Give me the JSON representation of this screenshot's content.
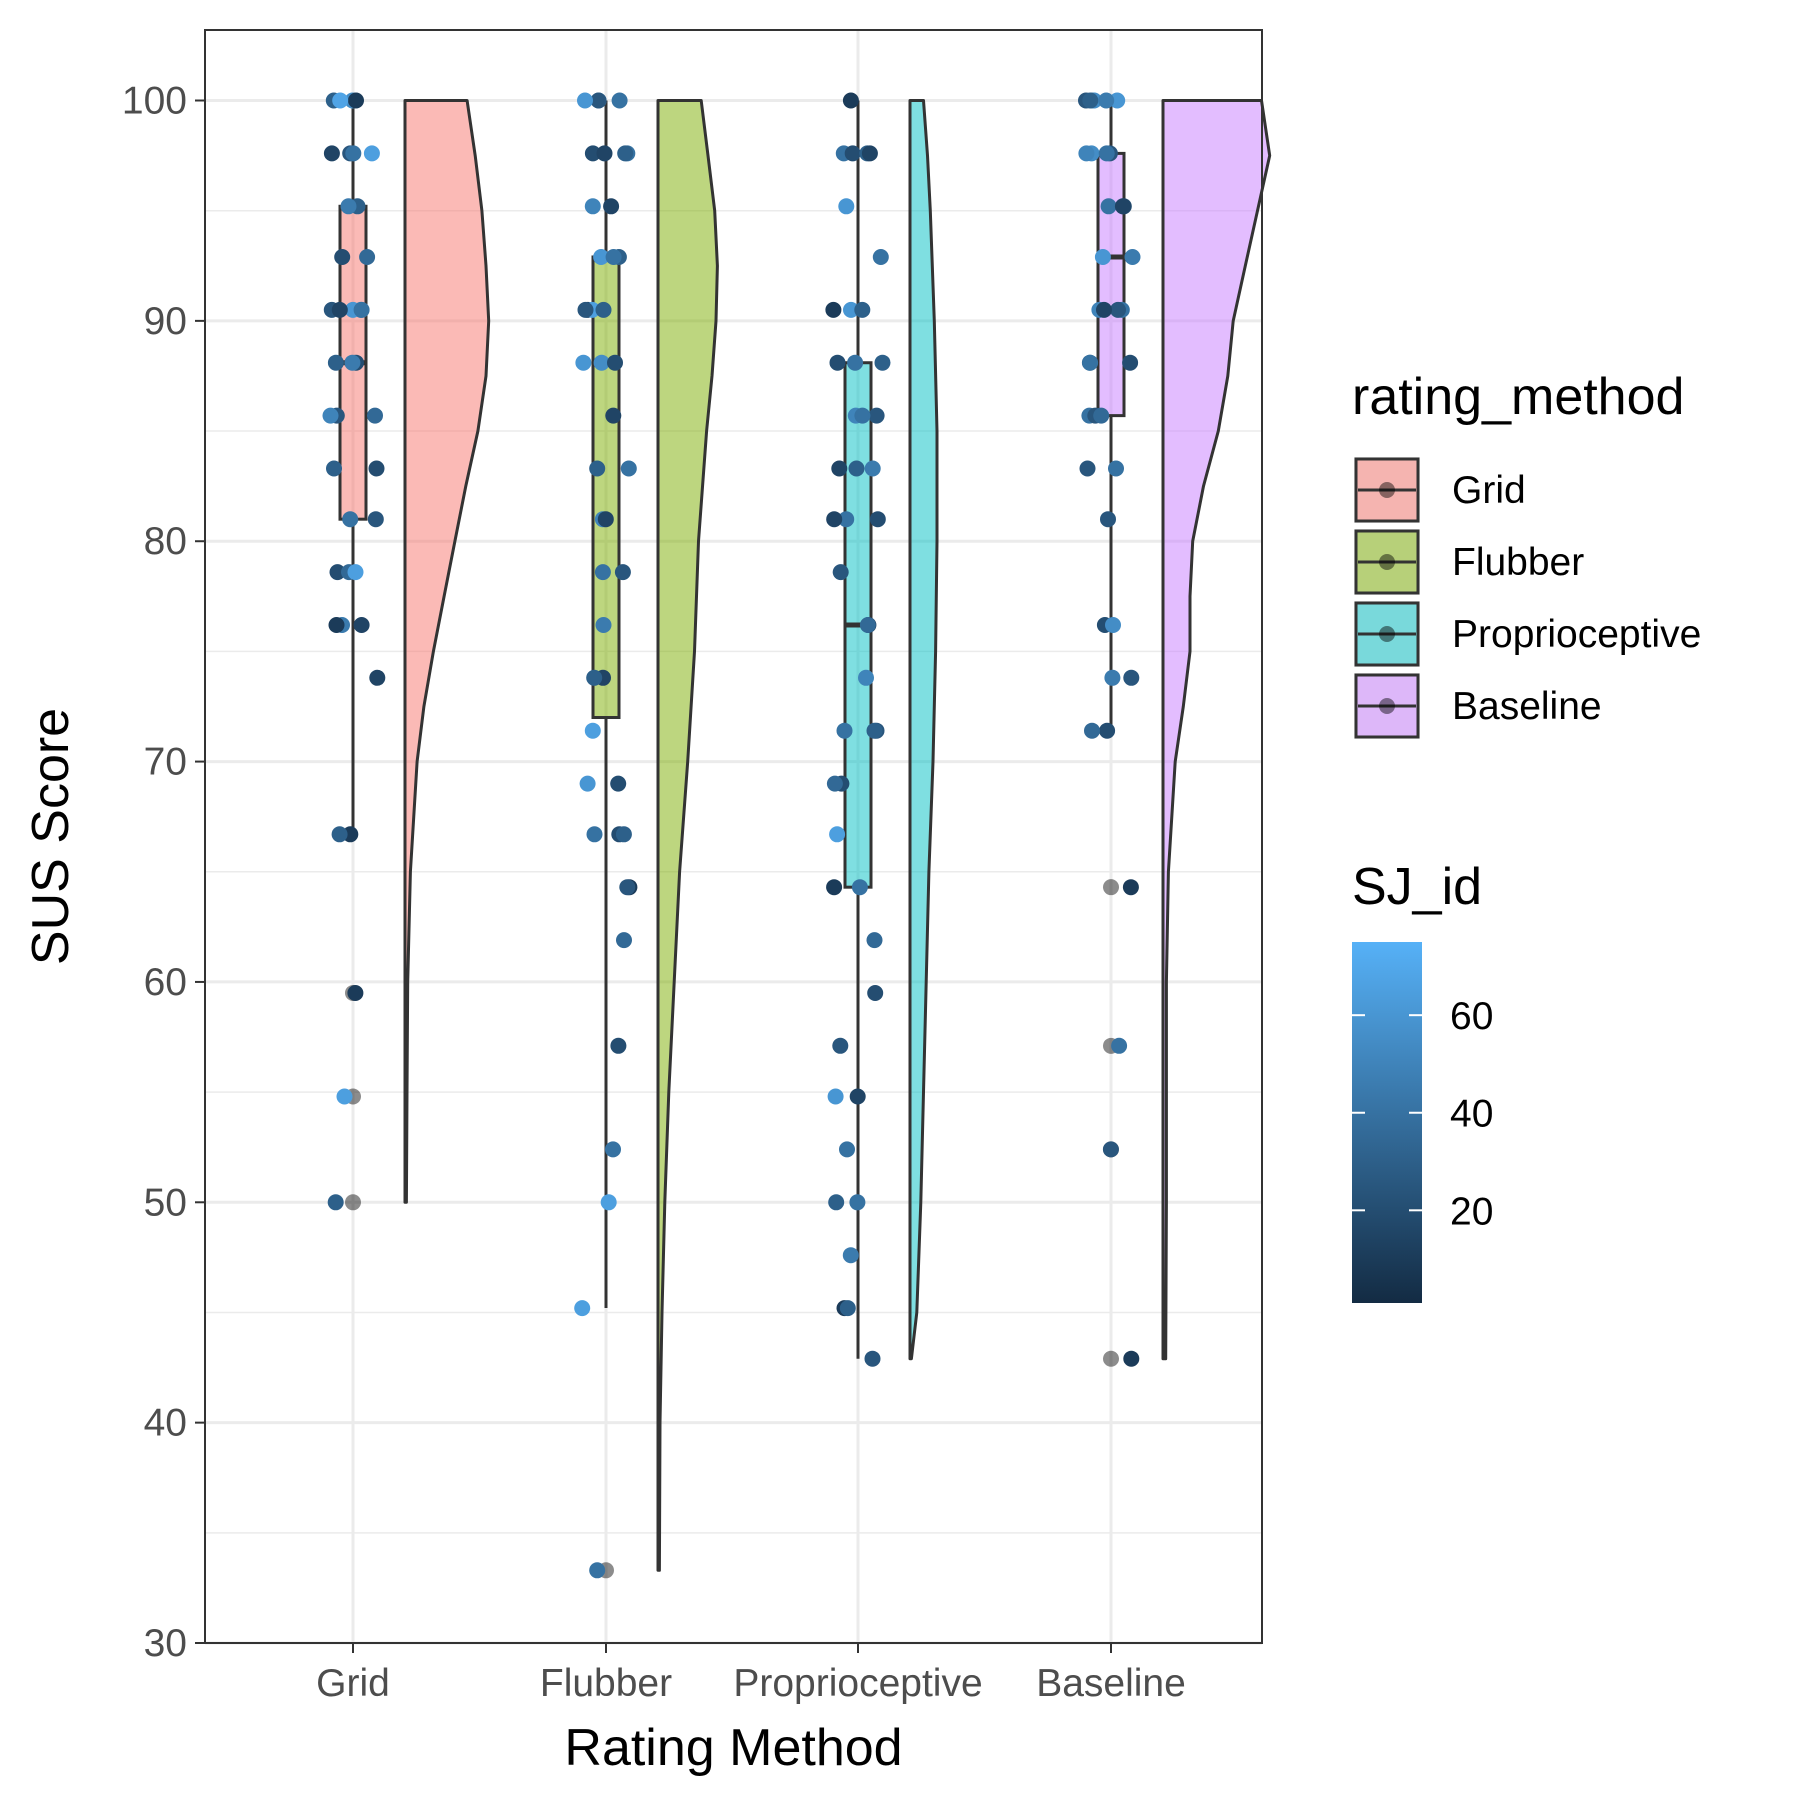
{
  "chart_data": {
    "type": "raincloud",
    "title": "",
    "xlabel": "Rating Method",
    "ylabel": "SUS Score",
    "ylim": [
      30,
      103.2
    ],
    "yticks": [
      30,
      40,
      50,
      60,
      70,
      80,
      90,
      100
    ],
    "grid": true,
    "theme": "bw",
    "legend_position": "right",
    "categories": [
      "Grid",
      "Flubber",
      "Proprioceptive",
      "Baseline"
    ],
    "series": [
      {
        "name": "Grid",
        "fill": "#F8766D",
        "box": {
          "lower_whisker": 66.7,
          "q1": 81.0,
          "median": 88.1,
          "q3": 95.2,
          "upper_whisker": 100.0
        },
        "outliers": [
          59.5,
          54.8,
          50.0
        ],
        "violin_range": [
          50.0,
          100.0
        ],
        "density": [
          [
            50,
            0.01
          ],
          [
            55,
            0.015
          ],
          [
            60,
            0.02
          ],
          [
            65,
            0.04
          ],
          [
            70,
            0.09
          ],
          [
            72.5,
            0.14
          ],
          [
            75,
            0.21
          ],
          [
            77.5,
            0.29
          ],
          [
            80,
            0.37
          ],
          [
            82.5,
            0.45
          ],
          [
            85,
            0.54
          ],
          [
            87.5,
            0.6
          ],
          [
            90,
            0.62
          ],
          [
            92.5,
            0.6
          ],
          [
            95,
            0.57
          ],
          [
            97.5,
            0.52
          ],
          [
            100,
            0.46
          ]
        ],
        "points": [
          {
            "y": 100.0,
            "id": 55
          },
          {
            "y": 100.0,
            "id": 10
          },
          {
            "y": 100.0,
            "id": 30
          },
          {
            "y": 100.0,
            "id": 68
          },
          {
            "y": 97.6,
            "id": 25
          },
          {
            "y": 97.6,
            "id": 40
          },
          {
            "y": 97.6,
            "id": 15
          },
          {
            "y": 97.6,
            "id": 65
          },
          {
            "y": 95.2,
            "id": 30
          },
          {
            "y": 95.2,
            "id": 45
          },
          {
            "y": 92.9,
            "id": 20
          },
          {
            "y": 92.9,
            "id": 35
          },
          {
            "y": 90.5,
            "id": 50
          },
          {
            "y": 90.5,
            "id": 25
          },
          {
            "y": 90.5,
            "id": 60
          },
          {
            "y": 90.5,
            "id": 15
          },
          {
            "y": 90.5,
            "id": 40
          },
          {
            "y": 88.1,
            "id": 30
          },
          {
            "y": 88.1,
            "id": 20
          },
          {
            "y": 88.1,
            "id": 45
          },
          {
            "y": 85.7,
            "id": 25
          },
          {
            "y": 85.7,
            "id": 50
          },
          {
            "y": 85.7,
            "id": 35
          },
          {
            "y": 83.3,
            "id": 20
          },
          {
            "y": 83.3,
            "id": 30
          },
          {
            "y": 81.0,
            "id": 40
          },
          {
            "y": 81.0,
            "id": 25
          },
          {
            "y": 78.6,
            "id": 20
          },
          {
            "y": 78.6,
            "id": 35
          },
          {
            "y": 78.6,
            "id": 65
          },
          {
            "y": 76.2,
            "id": 15
          },
          {
            "y": 76.2,
            "id": 45
          },
          {
            "y": 76.2,
            "id": 10
          },
          {
            "y": 73.8,
            "id": 15
          },
          {
            "y": 66.7,
            "id": 10
          },
          {
            "y": 66.7,
            "id": 30
          },
          {
            "y": 59.5,
            "id": 10
          },
          {
            "y": 54.8,
            "id": 65
          },
          {
            "y": 50.0,
            "id": 30
          }
        ]
      },
      {
        "name": "Flubber",
        "fill": "#7CAE00",
        "box": {
          "lower_whisker": 45.2,
          "q1": 72.0,
          "median": 88.1,
          "q3": 92.9,
          "upper_whisker": 100.0
        },
        "outliers": [
          33.3
        ],
        "violin_range": [
          33.3,
          100.0
        ],
        "density": [
          [
            33.3,
            0.01
          ],
          [
            40,
            0.015
          ],
          [
            45,
            0.03
          ],
          [
            50,
            0.05
          ],
          [
            55,
            0.08
          ],
          [
            60,
            0.12
          ],
          [
            65,
            0.16
          ],
          [
            70,
            0.22
          ],
          [
            75,
            0.27
          ],
          [
            80,
            0.3
          ],
          [
            85,
            0.36
          ],
          [
            87.5,
            0.4
          ],
          [
            90,
            0.43
          ],
          [
            92.5,
            0.44
          ],
          [
            95,
            0.42
          ],
          [
            97.5,
            0.37
          ],
          [
            100,
            0.32
          ]
        ],
        "points": [
          {
            "y": 100.0,
            "id": 40
          },
          {
            "y": 100.0,
            "id": 55
          },
          {
            "y": 100.0,
            "id": 25
          },
          {
            "y": 100.0,
            "id": 60
          },
          {
            "y": 97.6,
            "id": 40
          },
          {
            "y": 97.6,
            "id": 20
          },
          {
            "y": 97.6,
            "id": 30
          },
          {
            "y": 97.6,
            "id": 15
          },
          {
            "y": 95.2,
            "id": 50
          },
          {
            "y": 95.2,
            "id": 15
          },
          {
            "y": 92.9,
            "id": 60
          },
          {
            "y": 92.9,
            "id": 30
          },
          {
            "y": 92.9,
            "id": 40
          },
          {
            "y": 90.5,
            "id": 10
          },
          {
            "y": 90.5,
            "id": 65
          },
          {
            "y": 90.5,
            "id": 30
          },
          {
            "y": 90.5,
            "id": 25
          },
          {
            "y": 88.1,
            "id": 60
          },
          {
            "y": 88.1,
            "id": 55
          },
          {
            "y": 88.1,
            "id": 20
          },
          {
            "y": 85.7,
            "id": 15
          },
          {
            "y": 83.3,
            "id": 40
          },
          {
            "y": 83.3,
            "id": 30
          },
          {
            "y": 81.0,
            "id": 50
          },
          {
            "y": 81.0,
            "id": 15
          },
          {
            "y": 78.6,
            "id": 40
          },
          {
            "y": 78.6,
            "id": 25
          },
          {
            "y": 76.2,
            "id": 45
          },
          {
            "y": 73.8,
            "id": 15
          },
          {
            "y": 73.8,
            "id": 30
          },
          {
            "y": 71.4,
            "id": 65
          },
          {
            "y": 69.0,
            "id": 20
          },
          {
            "y": 69.0,
            "id": 60
          },
          {
            "y": 66.7,
            "id": 40
          },
          {
            "y": 66.7,
            "id": 20
          },
          {
            "y": 66.7,
            "id": 30
          },
          {
            "y": 64.3,
            "id": 10
          },
          {
            "y": 64.3,
            "id": 25
          },
          {
            "y": 61.9,
            "id": 35
          },
          {
            "y": 57.1,
            "id": 20
          },
          {
            "y": 52.4,
            "id": 40
          },
          {
            "y": 50.0,
            "id": 65
          },
          {
            "y": 45.2,
            "id": 65
          },
          {
            "y": 33.3,
            "id": 40
          }
        ]
      },
      {
        "name": "Proprioceptive",
        "fill": "#00BFC4",
        "box": {
          "lower_whisker": 42.9,
          "q1": 64.3,
          "median": 76.2,
          "q3": 88.1,
          "upper_whisker": 100.0
        },
        "outliers": [],
        "violin_range": [
          42.9,
          100.0
        ],
        "density": [
          [
            42.9,
            0.01
          ],
          [
            45,
            0.05
          ],
          [
            50,
            0.08
          ],
          [
            55,
            0.1
          ],
          [
            60,
            0.12
          ],
          [
            65,
            0.14
          ],
          [
            70,
            0.17
          ],
          [
            75,
            0.19
          ],
          [
            80,
            0.2
          ],
          [
            85,
            0.2
          ],
          [
            90,
            0.18
          ],
          [
            95,
            0.15
          ],
          [
            97.5,
            0.13
          ],
          [
            100,
            0.1
          ]
        ],
        "points": [
          {
            "y": 100.0,
            "id": 10
          },
          {
            "y": 97.6,
            "id": 40
          },
          {
            "y": 97.6,
            "id": 20
          },
          {
            "y": 97.6,
            "id": 30
          },
          {
            "y": 97.6,
            "id": 15
          },
          {
            "y": 95.2,
            "id": 60
          },
          {
            "y": 92.9,
            "id": 40
          },
          {
            "y": 90.5,
            "id": 10
          },
          {
            "y": 90.5,
            "id": 60
          },
          {
            "y": 90.5,
            "id": 30
          },
          {
            "y": 88.1,
            "id": 40
          },
          {
            "y": 88.1,
            "id": 20
          },
          {
            "y": 88.1,
            "id": 30
          },
          {
            "y": 85.7,
            "id": 50
          },
          {
            "y": 85.7,
            "id": 25
          },
          {
            "y": 85.7,
            "id": 40
          },
          {
            "y": 83.3,
            "id": 30
          },
          {
            "y": 83.3,
            "id": 15
          },
          {
            "y": 83.3,
            "id": 45
          },
          {
            "y": 81.0,
            "id": 20
          },
          {
            "y": 81.0,
            "id": 40
          },
          {
            "y": 81.0,
            "id": 15
          },
          {
            "y": 78.6,
            "id": 25
          },
          {
            "y": 76.2,
            "id": 10
          },
          {
            "y": 76.2,
            "id": 35
          },
          {
            "y": 73.8,
            "id": 50
          },
          {
            "y": 71.4,
            "id": 25
          },
          {
            "y": 71.4,
            "id": 40
          },
          {
            "y": 71.4,
            "id": 30
          },
          {
            "y": 69.0,
            "id": 20
          },
          {
            "y": 69.0,
            "id": 35
          },
          {
            "y": 66.7,
            "id": 65
          },
          {
            "y": 64.3,
            "id": 10
          },
          {
            "y": 64.3,
            "id": 40
          },
          {
            "y": 61.9,
            "id": 35
          },
          {
            "y": 59.5,
            "id": 20
          },
          {
            "y": 57.1,
            "id": 25
          },
          {
            "y": 54.8,
            "id": 15
          },
          {
            "y": 54.8,
            "id": 60
          },
          {
            "y": 52.4,
            "id": 40
          },
          {
            "y": 50.0,
            "id": 40
          },
          {
            "y": 50.0,
            "id": 30
          },
          {
            "y": 47.6,
            "id": 45
          },
          {
            "y": 45.2,
            "id": 10
          },
          {
            "y": 45.2,
            "id": 30
          },
          {
            "y": 42.9,
            "id": 25
          }
        ]
      },
      {
        "name": "Baseline",
        "fill": "#C77CFF",
        "box": {
          "lower_whisker": 71.4,
          "q1": 85.7,
          "median": 92.9,
          "q3": 97.6,
          "upper_whisker": 100.0
        },
        "outliers": [
          64.3,
          57.1,
          52.4,
          42.9
        ],
        "violin_range": [
          42.9,
          100.0
        ],
        "density": [
          [
            42.9,
            0.02
          ],
          [
            50,
            0.025
          ],
          [
            55,
            0.025
          ],
          [
            60,
            0.025
          ],
          [
            65,
            0.04
          ],
          [
            70,
            0.09
          ],
          [
            72.5,
            0.15
          ],
          [
            75,
            0.2
          ],
          [
            77.5,
            0.2
          ],
          [
            80,
            0.22
          ],
          [
            82.5,
            0.3
          ],
          [
            85,
            0.41
          ],
          [
            87.5,
            0.48
          ],
          [
            90,
            0.52
          ],
          [
            92.5,
            0.61
          ],
          [
            95,
            0.7
          ],
          [
            97.5,
            0.79
          ],
          [
            100,
            0.73
          ]
        ],
        "points": [
          {
            "y": 100.0,
            "id": 40
          },
          {
            "y": 100.0,
            "id": 55
          },
          {
            "y": 100.0,
            "id": 25
          },
          {
            "y": 100.0,
            "id": 60
          },
          {
            "y": 100.0,
            "id": 30
          },
          {
            "y": 100.0,
            "id": 45
          },
          {
            "y": 97.6,
            "id": 55
          },
          {
            "y": 97.6,
            "id": 25
          },
          {
            "y": 97.6,
            "id": 40
          },
          {
            "y": 97.6,
            "id": 50
          },
          {
            "y": 95.2,
            "id": 20
          },
          {
            "y": 95.2,
            "id": 40
          },
          {
            "y": 95.2,
            "id": 15
          },
          {
            "y": 92.9,
            "id": 60
          },
          {
            "y": 92.9,
            "id": 45
          },
          {
            "y": 90.5,
            "id": 40
          },
          {
            "y": 90.5,
            "id": 25
          },
          {
            "y": 90.5,
            "id": 50
          },
          {
            "y": 90.5,
            "id": 15
          },
          {
            "y": 88.1,
            "id": 30
          },
          {
            "y": 88.1,
            "id": 20
          },
          {
            "y": 88.1,
            "id": 40
          },
          {
            "y": 85.7,
            "id": 40
          },
          {
            "y": 85.7,
            "id": 25
          },
          {
            "y": 85.7,
            "id": 35
          },
          {
            "y": 83.3,
            "id": 25
          },
          {
            "y": 83.3,
            "id": 40
          },
          {
            "y": 81.0,
            "id": 25
          },
          {
            "y": 76.2,
            "id": 20
          },
          {
            "y": 76.2,
            "id": 55
          },
          {
            "y": 73.8,
            "id": 25
          },
          {
            "y": 73.8,
            "id": 45
          },
          {
            "y": 71.4,
            "id": 20
          },
          {
            "y": 71.4,
            "id": 35
          },
          {
            "y": 64.3,
            "id": 10
          },
          {
            "y": 57.1,
            "id": 40
          },
          {
            "y": 52.4,
            "id": 25
          },
          {
            "y": 42.9,
            "id": 10
          }
        ]
      }
    ],
    "legend_fill": {
      "title": "rating_method",
      "entries": [
        "Grid",
        "Flubber",
        "Proprioceptive",
        "Baseline"
      ]
    },
    "legend_color": {
      "title": "SJ_id",
      "type": "gradient",
      "range": [
        1,
        75
      ],
      "breaks": [
        20,
        40,
        60
      ],
      "low": "#132B43",
      "high": "#56B1F7"
    }
  }
}
